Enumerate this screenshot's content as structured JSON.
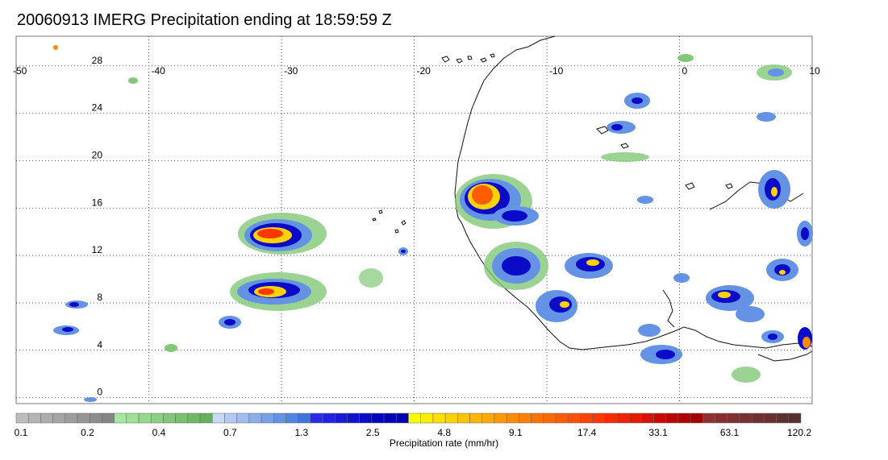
{
  "title": "20060913 IMERG Precipitation ending at 18:59:59 Z",
  "map": {
    "lon_range": [
      -50,
      10
    ],
    "lat_range": [
      -0.5,
      30.5
    ],
    "lon_ticks": [
      -50,
      -40,
      -30,
      -20,
      -10,
      0,
      10
    ],
    "lon_tick_labels": [
      "-50",
      "-40",
      "-30",
      "-20",
      "-10",
      "0",
      "10"
    ],
    "lat_ticks": [
      0,
      4,
      8,
      12,
      16,
      20,
      24,
      28
    ],
    "lat_tick_labels": [
      "0",
      "4",
      "8",
      "12",
      "16",
      "20",
      "24",
      "28"
    ],
    "grid": true,
    "grid_style": "dotted"
  },
  "colorbar": {
    "label": "Precipitation rate (mm/hr)",
    "tick_labels": [
      "0.1",
      "0.2",
      "0.4",
      "0.7",
      "1.3",
      "2.5",
      "4.8",
      "9.1",
      "17.4",
      "33.1",
      "63.1",
      "120.2"
    ],
    "groups": [
      {
        "name": "gray",
        "colors": [
          "#bdbdbd",
          "#b5b5b5",
          "#adadad",
          "#a5a5a5",
          "#9d9d9d",
          "#959595",
          "#8d8d8d",
          "#858585"
        ]
      },
      {
        "name": "green",
        "colors": [
          "#a6e8a0",
          "#9de096",
          "#94d88c",
          "#8bd082",
          "#82c878",
          "#79c06e",
          "#70b864",
          "#67b05a"
        ]
      },
      {
        "name": "light-blue",
        "colors": [
          "#c8d8f8",
          "#b4caf4",
          "#a0bcf0",
          "#8caeec",
          "#78a0e8",
          "#6492e4",
          "#5084e0",
          "#3c76dc"
        ]
      },
      {
        "name": "blue",
        "colors": [
          "#2a2ae8",
          "#2222e0",
          "#1a1ad8",
          "#1212d0",
          "#0a0ac8",
          "#0505c0",
          "#0000b8",
          "#0000b0"
        ]
      },
      {
        "name": "yellow",
        "colors": [
          "#ffff00",
          "#ffee00",
          "#ffe000",
          "#ffd200",
          "#ffc400",
          "#ffb600",
          "#ffa800",
          "#ff9a00"
        ]
      },
      {
        "name": "orange",
        "colors": [
          "#ff8c00",
          "#ff8000",
          "#ff7400",
          "#ff6800",
          "#ff5c00",
          "#ff5000",
          "#ff4400",
          "#ff3800"
        ]
      },
      {
        "name": "red",
        "colors": [
          "#ff2800",
          "#f22000",
          "#e51800",
          "#d81000",
          "#cb0800",
          "#be0000",
          "#b10000",
          "#a40000"
        ]
      },
      {
        "name": "dark-red",
        "colors": [
          "#903030",
          "#883030",
          "#803030",
          "#783030",
          "#703030",
          "#683030",
          "#603030",
          "#583030"
        ]
      }
    ]
  },
  "colors": {
    "grid": "#555555",
    "frame": "#777777",
    "coast": "#111111"
  }
}
